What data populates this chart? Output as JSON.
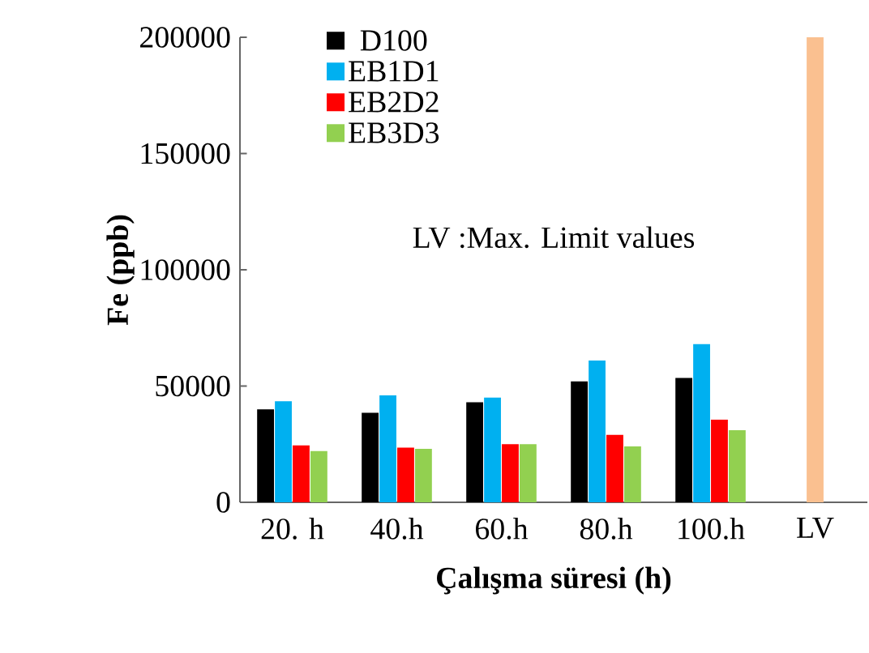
{
  "chart_data": {
    "type": "bar",
    "xlabel": "Çalışma süresi (h)",
    "ylabel": "Fe (ppb)",
    "categories": [
      "20. h",
      "40.h",
      "60.h",
      "80.h",
      "100.h",
      "LV"
    ],
    "series": [
      {
        "name": "D100",
        "color": "#000000",
        "values": [
          40000,
          38500,
          43000,
          52000,
          53500,
          null
        ]
      },
      {
        "name": "EB1D1",
        "color": "#00b0f0",
        "values": [
          43500,
          46000,
          45000,
          61000,
          68000,
          null
        ]
      },
      {
        "name": "EB2D2",
        "color": "#ff0000",
        "values": [
          24500,
          23500,
          25000,
          29000,
          35500,
          null
        ]
      },
      {
        "name": "EB3D3",
        "color": "#92d050",
        "values": [
          22000,
          23000,
          25000,
          24000,
          31000,
          null
        ]
      },
      {
        "color": "#fac090",
        "values": [
          null,
          null,
          null,
          null,
          null,
          200000
        ]
      }
    ],
    "ylim": [
      0,
      200000
    ],
    "yticks": [
      0,
      50000,
      100000,
      150000,
      200000
    ],
    "legend": "top",
    "grid": false,
    "annotations": [
      "LV :Max. Limit values"
    ]
  }
}
